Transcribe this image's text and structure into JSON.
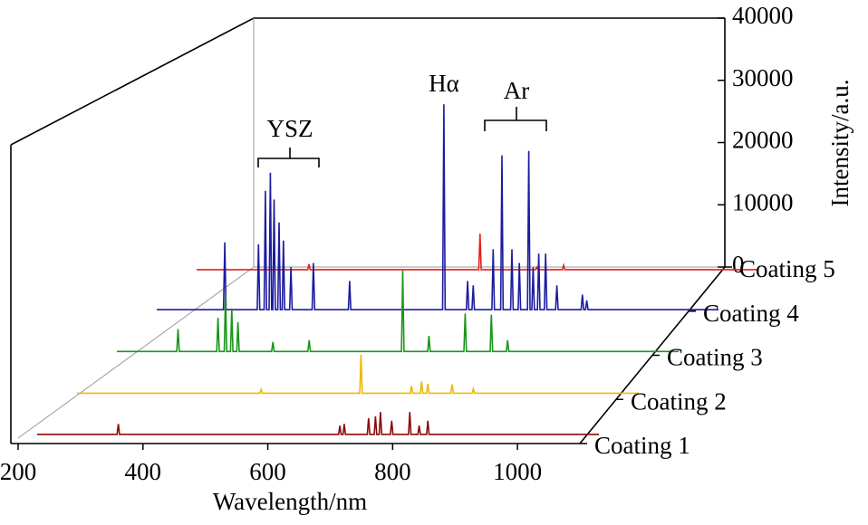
{
  "chart_data": {
    "type": "line",
    "xlabel": "Wavelength/nm",
    "ylabel": "Intensity/a.u.",
    "xlim": [
      200,
      1100
    ],
    "xticks": [
      200,
      400,
      600,
      800,
      1000
    ],
    "ylim": [
      0,
      40000
    ],
    "yticks": [
      0,
      10000,
      20000,
      30000,
      40000
    ],
    "annotations": [
      "YSZ",
      "Hα",
      "Ar"
    ],
    "series": [
      {
        "name": "Coating 1",
        "color": "#8b0a0a",
        "x": [
          200,
          328,
          330,
          332,
          683,
          685,
          687,
          690,
          692,
          694,
          729,
          731,
          733,
          740,
          742,
          744,
          748,
          750,
          752,
          766,
          768,
          770,
          795,
          797,
          799,
          810,
          812,
          814,
          824,
          826,
          828,
          1100
        ],
        "values": [
          300,
          300,
          2000,
          300,
          300,
          1700,
          300,
          300,
          2000,
          300,
          300,
          2900,
          300,
          300,
          3200,
          300,
          300,
          3900,
          300,
          300,
          2500,
          300,
          300,
          3900,
          300,
          300,
          1700,
          300,
          300,
          2500,
          300,
          300
        ]
      },
      {
        "name": "Coating 2",
        "color": "#f2b705",
        "x": [
          200,
          493,
          495,
          497,
          653,
          655,
          657,
          734,
          736,
          738,
          750,
          752,
          754,
          760,
          762,
          764,
          799,
          801,
          803,
          833,
          835,
          837,
          1100
        ],
        "values": [
          300,
          300,
          900,
          300,
          300,
          6500,
          300,
          300,
          1500,
          300,
          300,
          2200,
          300,
          300,
          1800,
          300,
          300,
          1700,
          300,
          300,
          1000,
          300,
          300
        ]
      },
      {
        "name": "Coating 3",
        "color": "#1a961a",
        "x": [
          200,
          296,
          298,
          300,
          360,
          362,
          364,
          372,
          374,
          376,
          382,
          384,
          386,
          392,
          394,
          396,
          448,
          450,
          452,
          506,
          508,
          510,
          656,
          658,
          660,
          698,
          700,
          702,
          756,
          758,
          760,
          798,
          800,
          802,
          824,
          826,
          828,
          1100
        ],
        "values": [
          400,
          400,
          4000,
          400,
          400,
          5800,
          400,
          400,
          9500,
          400,
          400,
          7300,
          400,
          400,
          5100,
          400,
          400,
          1900,
          400,
          400,
          2200,
          400,
          400,
          13400,
          400,
          400,
          2900,
          400,
          400,
          6500,
          400,
          400,
          6300,
          400,
          400,
          2200,
          400,
          400
        ]
      },
      {
        "name": "Coating 4",
        "color": "#1c1ca0",
        "x": [
          200,
          307,
          309,
          311,
          361,
          363,
          365,
          372,
          374,
          376,
          380,
          382,
          384,
          386,
          388,
          390,
          394,
          396,
          398,
          401,
          403,
          405,
          413,
          415,
          417,
          449,
          451,
          453,
          507,
          509,
          511,
          658,
          660,
          662,
          696,
          698,
          700,
          705,
          707,
          709,
          737,
          739,
          741,
          751,
          753,
          755,
          767,
          769,
          771,
          779,
          781,
          783,
          794,
          796,
          798,
          801,
          803,
          805,
          810,
          812,
          814,
          821,
          823,
          825,
          839,
          841,
          843,
          880,
          882,
          884,
          887,
          889,
          891,
          1100
        ],
        "values": [
          500,
          500,
          11300,
          500,
          500,
          11000,
          500,
          500,
          19600,
          500,
          500,
          22500,
          500,
          500,
          18200,
          500,
          500,
          14500,
          500,
          500,
          11600,
          500,
          500,
          7300,
          500,
          500,
          8000,
          500,
          500,
          5100,
          500,
          500,
          33500,
          500,
          500,
          5100,
          500,
          500,
          4400,
          500,
          500,
          10200,
          500,
          500,
          25300,
          500,
          500,
          10200,
          500,
          500,
          8000,
          500,
          500,
          26000,
          500,
          500,
          7300,
          500,
          500,
          9500,
          500,
          500,
          9500,
          500,
          500,
          4400,
          500,
          500,
          2900,
          500,
          500,
          2000,
          500,
          500
        ]
      },
      {
        "name": "Coating 5",
        "color": "#e3211c",
        "x": [
          200,
          378,
          380,
          382,
          652,
          654,
          656,
          743,
          745,
          747,
          786,
          788,
          790,
          1100
        ],
        "values": [
          300,
          300,
          1200,
          300,
          300,
          6100,
          300,
          300,
          700,
          300,
          300,
          1000,
          300,
          300
        ]
      }
    ]
  }
}
